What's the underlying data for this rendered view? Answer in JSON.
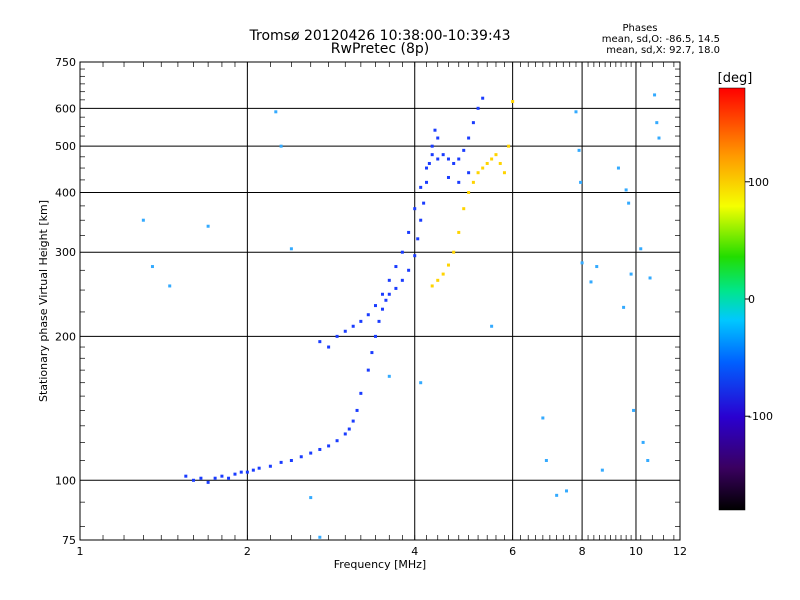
{
  "chart_data": {
    "type": "scatter",
    "title": "Tromsø 20120426 10:38:00-10:39:43",
    "subtitle": "RwPretec (8p)",
    "xlabel": "Frequency [MHz]",
    "ylabel": "Stationary phase Virtual Height [km]",
    "x_scale": "log",
    "y_scale": "log",
    "xlim": [
      1,
      12
    ],
    "ylim": [
      75,
      750
    ],
    "grid": true,
    "x_ticks": [
      {
        "value": 1,
        "label": "1"
      },
      {
        "value": 2,
        "label": "2"
      },
      {
        "value": 4,
        "label": "4"
      },
      {
        "value": 6,
        "label": "6"
      },
      {
        "value": 8,
        "label": "8"
      },
      {
        "value": 10,
        "label": "10"
      },
      {
        "value": 12,
        "label": "12"
      }
    ],
    "y_ticks": [
      {
        "value": 75,
        "label": "75"
      },
      {
        "value": 100,
        "label": "100"
      },
      {
        "value": 200,
        "label": "200"
      },
      {
        "value": 300,
        "label": "300"
      },
      {
        "value": 400,
        "label": "400"
      },
      {
        "value": 500,
        "label": "500"
      },
      {
        "value": 600,
        "label": "600"
      },
      {
        "value": 750,
        "label": "750"
      }
    ],
    "phases_info": {
      "title": "Phases",
      "line_o": "mean, sd,O: -86.5, 14.5",
      "line_x": "mean, sd,X:  92.7, 18.0"
    },
    "colorbar": {
      "label": "[deg]",
      "range": [
        -180,
        180
      ],
      "ticks": [
        {
          "value": 100,
          "label": "100"
        },
        {
          "value": 0,
          "label": "0"
        },
        {
          "value": -100,
          "label": "-100"
        }
      ],
      "colormap": "rainbow (black-purple-blue-cyan-green-yellow-red)"
    },
    "series": [
      {
        "mode": "O",
        "color": "#1a3cff",
        "mean_phase": -86.5,
        "points": [
          [
            1.55,
            102
          ],
          [
            1.6,
            100
          ],
          [
            1.65,
            101
          ],
          [
            1.7,
            99
          ],
          [
            1.75,
            101
          ],
          [
            1.8,
            102
          ],
          [
            1.85,
            101
          ],
          [
            1.9,
            103
          ],
          [
            1.95,
            104
          ],
          [
            2.0,
            104
          ],
          [
            2.05,
            105
          ],
          [
            2.1,
            106
          ],
          [
            2.2,
            107
          ],
          [
            2.3,
            109
          ],
          [
            2.4,
            110
          ],
          [
            2.5,
            112
          ],
          [
            2.6,
            114
          ],
          [
            2.7,
            116
          ],
          [
            2.8,
            118
          ],
          [
            2.9,
            121
          ],
          [
            3.0,
            125
          ],
          [
            3.05,
            128
          ],
          [
            3.1,
            133
          ],
          [
            3.15,
            140
          ],
          [
            3.2,
            152
          ],
          [
            3.3,
            170
          ],
          [
            3.35,
            185
          ],
          [
            3.4,
            200
          ],
          [
            3.45,
            215
          ],
          [
            3.5,
            228
          ],
          [
            3.55,
            238
          ],
          [
            3.6,
            245
          ],
          [
            3.7,
            252
          ],
          [
            3.8,
            262
          ],
          [
            3.9,
            275
          ],
          [
            4.0,
            295
          ],
          [
            4.05,
            320
          ],
          [
            4.1,
            350
          ],
          [
            4.15,
            380
          ],
          [
            4.2,
            420
          ],
          [
            4.25,
            460
          ],
          [
            4.3,
            500
          ],
          [
            4.35,
            540
          ],
          [
            4.4,
            520
          ],
          [
            4.5,
            480
          ],
          [
            4.6,
            470
          ],
          [
            4.7,
            460
          ],
          [
            4.8,
            470
          ],
          [
            4.9,
            490
          ],
          [
            5.0,
            520
          ],
          [
            5.1,
            560
          ],
          [
            5.2,
            600
          ],
          [
            5.3,
            630
          ],
          [
            2.7,
            195
          ],
          [
            2.8,
            190
          ],
          [
            2.9,
            200
          ],
          [
            3.0,
            205
          ],
          [
            3.1,
            210
          ],
          [
            3.2,
            215
          ],
          [
            3.3,
            222
          ],
          [
            3.4,
            232
          ],
          [
            3.5,
            245
          ],
          [
            3.6,
            262
          ],
          [
            3.7,
            280
          ],
          [
            3.8,
            300
          ],
          [
            3.9,
            330
          ],
          [
            4.0,
            370
          ],
          [
            4.1,
            410
          ],
          [
            4.2,
            450
          ],
          [
            4.3,
            480
          ],
          [
            4.4,
            470
          ],
          [
            4.6,
            430
          ],
          [
            4.8,
            420
          ],
          [
            5.0,
            440
          ]
        ]
      },
      {
        "mode": "X",
        "color": "#ffd400",
        "mean_phase": 92.7,
        "points": [
          [
            4.3,
            255
          ],
          [
            4.4,
            262
          ],
          [
            4.5,
            270
          ],
          [
            4.6,
            282
          ],
          [
            4.7,
            300
          ],
          [
            4.8,
            330
          ],
          [
            4.9,
            370
          ],
          [
            5.0,
            400
          ],
          [
            5.1,
            420
          ],
          [
            5.2,
            440
          ],
          [
            5.3,
            450
          ],
          [
            5.4,
            460
          ],
          [
            5.5,
            470
          ],
          [
            5.6,
            480
          ],
          [
            5.7,
            460
          ],
          [
            5.8,
            440
          ],
          [
            5.9,
            500
          ],
          [
            6.0,
            620
          ]
        ]
      },
      {
        "mode": "scattered",
        "color": "#33aaff",
        "points": [
          [
            1.3,
            350
          ],
          [
            1.35,
            280
          ],
          [
            1.45,
            255
          ],
          [
            1.7,
            340
          ],
          [
            2.25,
            590
          ],
          [
            2.3,
            500
          ],
          [
            2.4,
            305
          ],
          [
            2.6,
            92
          ],
          [
            2.7,
            76
          ],
          [
            3.6,
            165
          ],
          [
            4.1,
            160
          ],
          [
            5.5,
            210
          ],
          [
            6.8,
            135
          ],
          [
            6.9,
            110
          ],
          [
            7.2,
            93
          ],
          [
            7.5,
            95
          ],
          [
            7.8,
            590
          ],
          [
            7.9,
            490
          ],
          [
            7.95,
            420
          ],
          [
            8.0,
            285
          ],
          [
            8.3,
            260
          ],
          [
            8.5,
            280
          ],
          [
            8.7,
            105
          ],
          [
            9.3,
            450
          ],
          [
            9.5,
            230
          ],
          [
            9.6,
            405
          ],
          [
            9.7,
            380
          ],
          [
            9.8,
            270
          ],
          [
            9.9,
            140
          ],
          [
            10.2,
            305
          ],
          [
            10.3,
            120
          ],
          [
            10.5,
            110
          ],
          [
            10.6,
            265
          ],
          [
            10.8,
            640
          ],
          [
            10.9,
            560
          ],
          [
            11.0,
            520
          ]
        ]
      }
    ]
  }
}
